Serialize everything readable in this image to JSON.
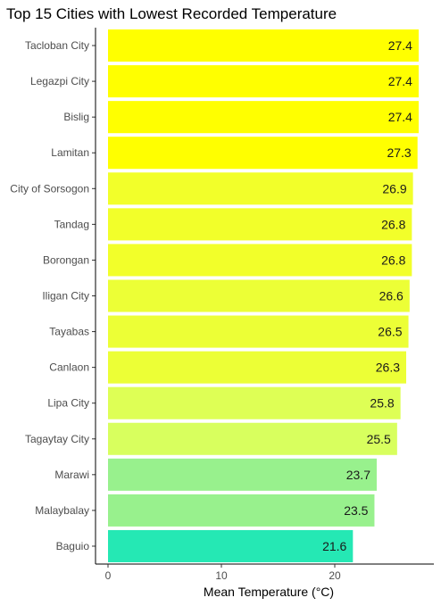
{
  "chart_data": {
    "type": "bar",
    "orientation": "horizontal",
    "title": "Top 15 Cities with Lowest Recorded Temperature",
    "xlabel": "Mean Temperature (°C)",
    "ylabel": "",
    "xlim": [
      0,
      28
    ],
    "x_ticks": [
      "0",
      "10",
      "20"
    ],
    "grid": false,
    "legend": "none",
    "categories": [
      "Tacloban City",
      "Legazpi City",
      "Bislig",
      "Lamitan",
      "City of Sorsogon",
      "Tandag",
      "Borongan",
      "Iligan City",
      "Tayabas",
      "Canlaon",
      "Lipa City",
      "Tagaytay City",
      "Marawi",
      "Malaybalay",
      "Baguio"
    ],
    "values": [
      27.4,
      27.4,
      27.4,
      27.3,
      26.9,
      26.8,
      26.8,
      26.6,
      26.5,
      26.3,
      25.8,
      25.5,
      23.7,
      23.5,
      21.6
    ],
    "value_labels": [
      "27.4",
      "27.4",
      "27.4",
      "27.3",
      "26.9",
      "26.8",
      "26.8",
      "26.6",
      "26.5",
      "26.3",
      "25.8",
      "25.5",
      "23.7",
      "23.5",
      "21.6"
    ],
    "colors": [
      "#ffff00",
      "#ffff00",
      "#ffff00",
      "#ffff00",
      "#f2ff2a",
      "#f2ff2a",
      "#f2ff2a",
      "#ecff36",
      "#ecff36",
      "#ecff36",
      "#deff55",
      "#d8ff5e",
      "#98f18d",
      "#98f18d",
      "#25e8b4"
    ]
  }
}
